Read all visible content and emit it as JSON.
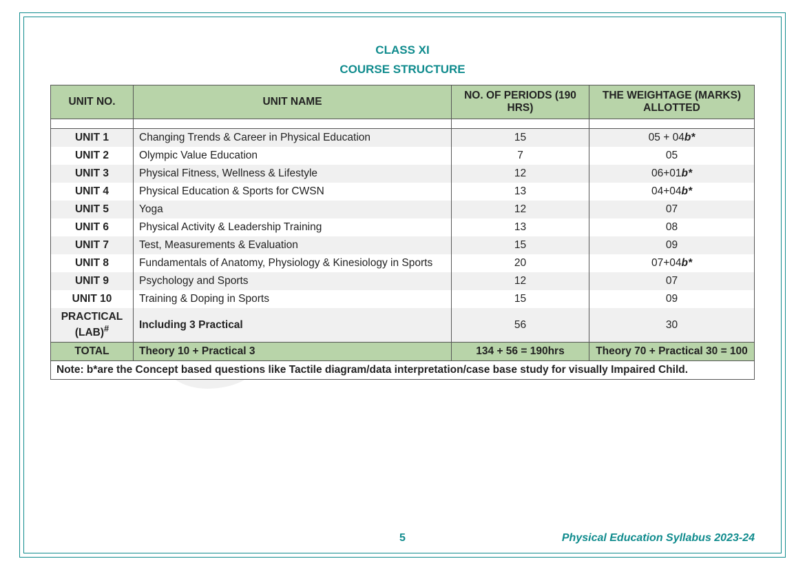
{
  "title": "CLASS XI",
  "subtitle": "COURSE STRUCTURE",
  "headers": {
    "unit_no": "UNIT NO.",
    "unit_name": "UNIT NAME",
    "periods": "NO. OF PERIODS (190 HRS)",
    "weightage": "THE WEIGHTAGE (MARKS) ALLOTTED"
  },
  "rows": [
    {
      "unit": "UNIT 1",
      "name": "Changing Trends & Career in Physical Education",
      "periods": "15",
      "wt_prefix": "05 + 04",
      "wt_b": "b*",
      "stripe": "even"
    },
    {
      "unit": "UNIT 2",
      "name": "Olympic Value Education",
      "periods": "7",
      "wt_prefix": "05",
      "wt_b": "",
      "stripe": "odd"
    },
    {
      "unit": "UNIT 3",
      "name": "Physical Fitness, Wellness & Lifestyle",
      "periods": "12",
      "wt_prefix": "06+01",
      "wt_b": "b*",
      "stripe": "even"
    },
    {
      "unit": "UNIT 4",
      "name": "Physical Education & Sports for CWSN",
      "periods": "13",
      "wt_prefix": "04+04",
      "wt_b": "b*",
      "stripe": "odd"
    },
    {
      "unit": "UNIT 5",
      "name": "Yoga",
      "periods": "12",
      "wt_prefix": "07",
      "wt_b": "",
      "stripe": "even"
    },
    {
      "unit": "UNIT 6",
      "name": "Physical Activity & Leadership Training",
      "periods": "13",
      "wt_prefix": "08",
      "wt_b": "",
      "stripe": "odd"
    },
    {
      "unit": "UNIT 7",
      "name": "Test, Measurements & Evaluation",
      "periods": "15",
      "wt_prefix": "09",
      "wt_b": "",
      "stripe": "even"
    },
    {
      "unit": "UNIT 8",
      "name": "Fundamentals of Anatomy, Physiology & Kinesiology in Sports",
      "periods": "20",
      "wt_prefix": "07+04",
      "wt_b": "b*",
      "stripe": "odd"
    },
    {
      "unit": "UNIT 9",
      "name": "Psychology and Sports",
      "periods": "12",
      "wt_prefix": "07",
      "wt_b": "",
      "stripe": "even"
    },
    {
      "unit": "UNIT 10",
      "name": "Training & Doping in Sports",
      "periods": "15",
      "wt_prefix": "09",
      "wt_b": "",
      "stripe": "odd"
    }
  ],
  "practical": {
    "unit": "PRACTICAL (LAB)ᵇ",
    "name": "Including 3 Practical",
    "periods": "56",
    "weightage": "30"
  },
  "total": {
    "label": "TOTAL",
    "name": "Theory 10 + Practical 3",
    "periods": "134 + 56 = 190hrs",
    "weightage": "Theory 70 + Practical 30 = 100"
  },
  "note": "Note: b*are the Concept based questions like Tactile diagram/data interpretation/case base study for visually Impaired Child.",
  "footer": {
    "page": "5",
    "right": "Physical Education Syllabus 2023-24"
  },
  "colors": {
    "accent": "#0f8b8d",
    "header_bg": "#b8d4a9",
    "row_alt": "#f0f0f0",
    "practical_text": "#6c3a9c",
    "border": "#555555"
  }
}
